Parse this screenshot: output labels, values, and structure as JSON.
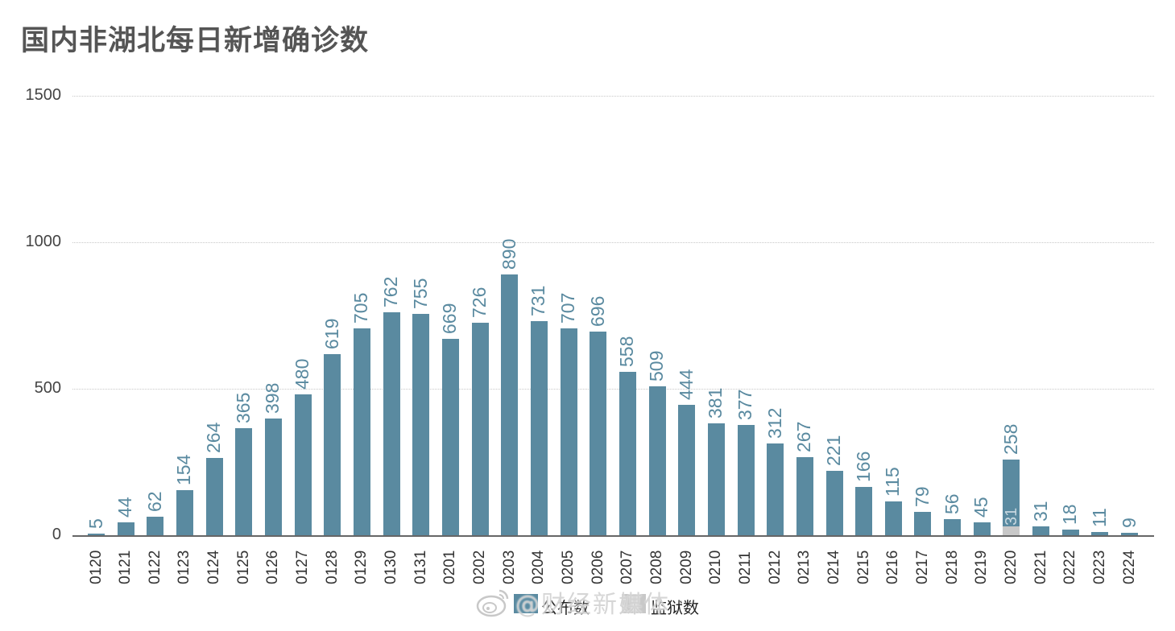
{
  "title": "国内非湖北每日新增确诊数",
  "legend": {
    "published_label": "公布数",
    "prison_label": "监狱数",
    "published_color": "#5a8aa0",
    "prison_color": "#c8c8c8"
  },
  "watermark": "@财经新媒体",
  "chart_data": {
    "type": "bar",
    "title": "国内非湖北每日新增确诊数",
    "xlabel": "",
    "ylabel": "",
    "ylim": [
      0,
      1500
    ],
    "yticks": [
      0,
      500,
      1000,
      1500
    ],
    "grid": true,
    "legend_position": "bottom",
    "stacked": true,
    "categories": [
      "0120",
      "0121",
      "0122",
      "0123",
      "0124",
      "0125",
      "0126",
      "0127",
      "0128",
      "0129",
      "0130",
      "0131",
      "0201",
      "0202",
      "0203",
      "0204",
      "0205",
      "0206",
      "0207",
      "0208",
      "0209",
      "0210",
      "0211",
      "0212",
      "0213",
      "0214",
      "0215",
      "0216",
      "0217",
      "0218",
      "0219",
      "0220",
      "0221",
      "0222",
      "0223",
      "0224"
    ],
    "series": [
      {
        "name": "公布数",
        "color": "#5a8aa0",
        "values": [
          5,
          44,
          62,
          154,
          264,
          365,
          398,
          480,
          619,
          705,
          762,
          755,
          669,
          726,
          890,
          731,
          707,
          696,
          558,
          509,
          444,
          381,
          377,
          312,
          267,
          221,
          166,
          115,
          79,
          56,
          45,
          227,
          31,
          18,
          11,
          9
        ]
      },
      {
        "name": "监狱数",
        "color": "#c8c8c8",
        "values": [
          0,
          0,
          0,
          0,
          0,
          0,
          0,
          0,
          0,
          0,
          0,
          0,
          0,
          0,
          0,
          0,
          0,
          0,
          0,
          0,
          0,
          0,
          0,
          0,
          0,
          0,
          0,
          0,
          0,
          0,
          0,
          31,
          0,
          0,
          0,
          0
        ]
      }
    ],
    "data_labels": [
      "5",
      "44",
      "62",
      "154",
      "264",
      "365",
      "398",
      "480",
      "619",
      "705",
      "762",
      "755",
      "669",
      "726",
      "890",
      "731",
      "707",
      "696",
      "558",
      "509",
      "444",
      "381",
      "377",
      "312",
      "267",
      "221",
      "166",
      "115",
      "79",
      "56",
      "45",
      "258",
      "31",
      "18",
      "11",
      "9"
    ],
    "annotations": [
      {
        "category": "0220",
        "text": "31",
        "note": "prison cases segment inside 0220 bar; total label 258"
      }
    ]
  }
}
